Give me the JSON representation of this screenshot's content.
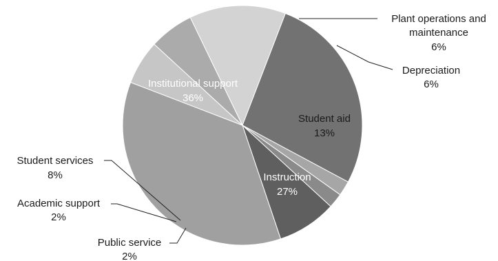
{
  "chart_data": {
    "type": "pie",
    "title": "",
    "slices": [
      {
        "label": "Plant operations and maintenance",
        "value": 6,
        "color": "#c6c6c6",
        "pct_text": "6%"
      },
      {
        "label": "Depreciation",
        "value": 6,
        "color": "#ababab",
        "pct_text": "6%"
      },
      {
        "label": "Student aid",
        "value": 13,
        "color": "#d3d3d3",
        "pct_text": "13%"
      },
      {
        "label": "Instruction",
        "value": 27,
        "color": "#727272",
        "pct_text": "27%"
      },
      {
        "label": "Public service",
        "value": 2,
        "color": "#a6a6a6",
        "pct_text": "2%"
      },
      {
        "label": "Academic support",
        "value": 2,
        "color": "#8a8a8a",
        "pct_text": "2%"
      },
      {
        "label": "Student services",
        "value": 8,
        "color": "#5f5f5f",
        "pct_text": "8%"
      },
      {
        "label": "Institutional support",
        "value": 36,
        "color": "#a0a0a0",
        "pct_text": "36%"
      }
    ],
    "legend": "none",
    "labels": {
      "plant_line1": "Plant operations and",
      "plant_line2": "maintenance",
      "plant_pct": "6%",
      "depreciation": "Depreciation",
      "depreciation_pct": "6%",
      "student_aid": "Student aid",
      "student_aid_pct": "13%",
      "instruction": "Instruction",
      "instruction_pct": "27%",
      "public_service": "Public service",
      "public_service_pct": "2%",
      "academic_support": "Academic support",
      "academic_support_pct": "2%",
      "student_services": "Student services",
      "student_services_pct": "8%",
      "institutional": "Institutional support",
      "institutional_pct": "36%"
    }
  }
}
